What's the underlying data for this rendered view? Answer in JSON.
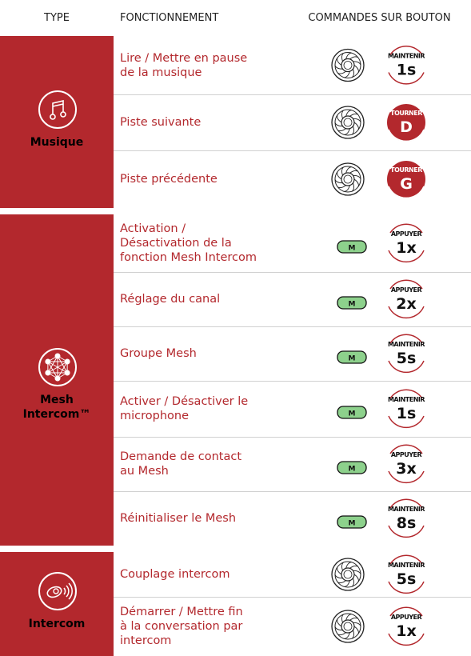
{
  "header": [
    "TYPE",
    "FONCTIONNEMENT",
    "COMMANDES SUR BOUTON"
  ],
  "groups": [
    {
      "label": "Musique",
      "rows": [
        {
          "function": "Lire / Mettre en pause\nde la musique",
          "action": "MAINTENIR",
          "value": "1s"
        },
        {
          "function": "Piste suivante",
          "action": "TOURNER",
          "value": "D",
          "badge_fill": "#b3282d"
        },
        {
          "function": "Piste précédente",
          "action": "TOURNER",
          "value": "G",
          "badge_fill": "#b3282d"
        }
      ]
    },
    {
      "label": "Mesh\nIntercom™",
      "rows": [
        {
          "function": "Activation /\nDésactivation de la\nfonction Mesh Intercom",
          "button": "M",
          "action": "APPUYER",
          "value": "1x"
        },
        {
          "function": "Réglage du canal",
          "button": "M",
          "action": "APPUYER",
          "value": "2x"
        },
        {
          "function": "Groupe Mesh",
          "button": "M",
          "action": "MAINTENIR",
          "value": "5s"
        },
        {
          "function": "Activer / Désactiver le\nmicrophone",
          "button": "M",
          "action": "MAINTENIR",
          "value": "1s"
        },
        {
          "function": "Demande de contact\nau Mesh",
          "button": "M",
          "action": "APPUYER",
          "value": "3x"
        },
        {
          "function": "Réinitialiser le Mesh",
          "button": "M",
          "action": "MAINTENIR",
          "value": "8s"
        }
      ]
    },
    {
      "label": "Intercom",
      "rows": [
        {
          "function": "Couplage intercom",
          "action": "MAINTENIR",
          "value": "5s"
        },
        {
          "function": "Démarrer / Mettre fin\nà la conversation par\nintercom",
          "action": "APPUYER",
          "value": "1x"
        }
      ]
    }
  ]
}
